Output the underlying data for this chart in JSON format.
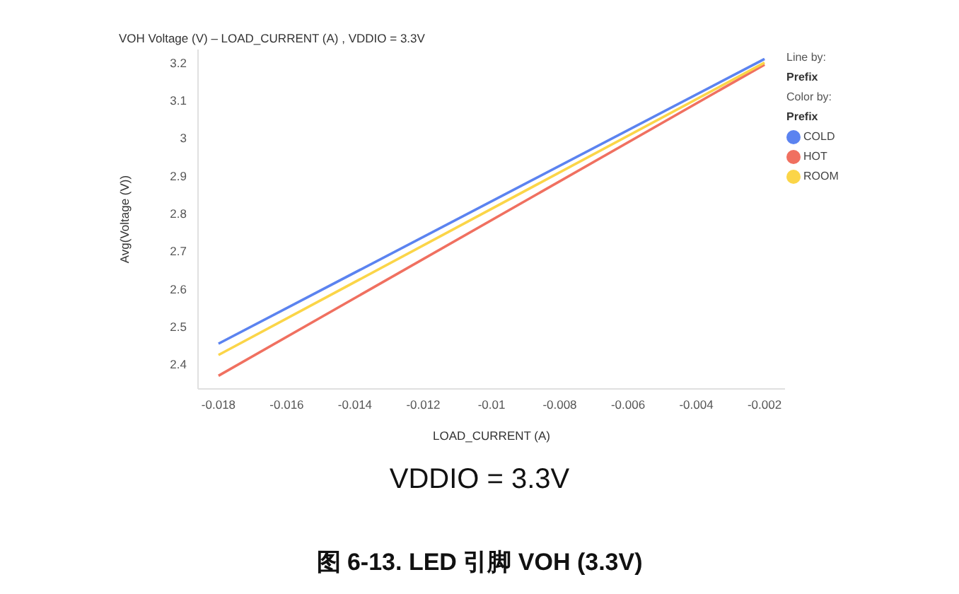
{
  "chart_data": {
    "type": "line",
    "title": "VOH Voltage (V) – LOAD_CURRENT (A) , VDDIO = 3.3V",
    "subtitle": "VDDIO = 3.3V",
    "xlabel": "LOAD_CURRENT (A)",
    "ylabel": "Avg(Voltage (V))",
    "legend_title": "Prefix",
    "annotations": [
      "Line by:",
      "Prefix",
      "Color by:",
      "图 6-13. LED 引脚 VOH (3.3V)"
    ],
    "x": [
      -0.018,
      -0.002
    ],
    "series": [
      {
        "name": "COLD",
        "color": "#5b83f0",
        "values": [
          2.455,
          3.21
        ]
      },
      {
        "name": "HOT",
        "color": "#f07060",
        "values": [
          2.37,
          3.195
        ]
      },
      {
        "name": "ROOM",
        "color": "#fbd548",
        "values": [
          2.425,
          3.2
        ]
      }
    ],
    "xlim": [
      -0.0186,
      -0.0014
    ],
    "xticks": [
      -0.018,
      -0.016,
      -0.014,
      -0.012,
      -0.01,
      -0.008,
      -0.006,
      -0.004,
      -0.002
    ],
    "ylim": [
      2.335,
      3.235
    ],
    "yticks": [
      2.4,
      2.5,
      2.6,
      2.7,
      2.8,
      2.9,
      3,
      3.1,
      3.2
    ],
    "grid": false,
    "legend": "right",
    "marker": "none",
    "line_style": "solid"
  }
}
